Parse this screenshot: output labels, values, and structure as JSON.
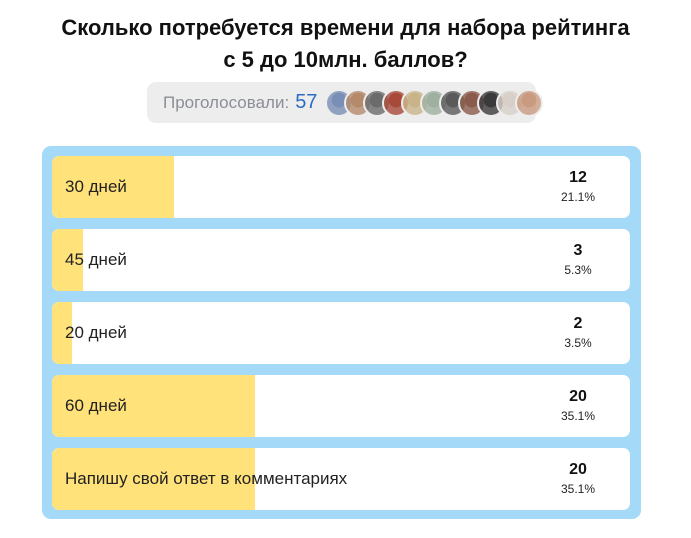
{
  "poll": {
    "title_line1": "Сколько потребуется времени для набора рейтинга",
    "title_line2": "с 5 до 10млн. баллов?",
    "voters_label": "Проголосовали:",
    "voters_count": "57",
    "voter_avatar_colors": [
      "#7a8fb5",
      "#b58a6b",
      "#6b6b6b",
      "#a84a3a",
      "#c9b48a",
      "#9fb0a0",
      "#5a5a5a",
      "#8a5a4a",
      "#3a3a3a",
      "#d8d0c8",
      "#c89a80"
    ],
    "options": [
      {
        "label": "30 дней",
        "count": "12",
        "percent": "21.1%",
        "fraction": 0.211
      },
      {
        "label": "45 дней",
        "count": "3",
        "percent": "5.3%",
        "fraction": 0.053
      },
      {
        "label": "20 дней",
        "count": "2",
        "percent": "3.5%",
        "fraction": 0.035
      },
      {
        "label": "60 дней",
        "count": "20",
        "percent": "35.1%",
        "fraction": 0.351
      },
      {
        "label": "Напишу свой ответ в комментариях",
        "count": "20",
        "percent": "35.1%",
        "fraction": 0.351
      }
    ]
  },
  "colors": {
    "panel_bg": "#a4daf7",
    "bar_fill": "#ffe27a",
    "count_accent": "#2c6dc1"
  }
}
